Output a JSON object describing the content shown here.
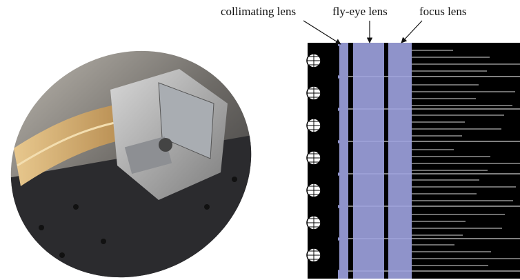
{
  "annotations": [
    "collimating lens",
    "fly-eye lens",
    "focus lens"
  ]
}
